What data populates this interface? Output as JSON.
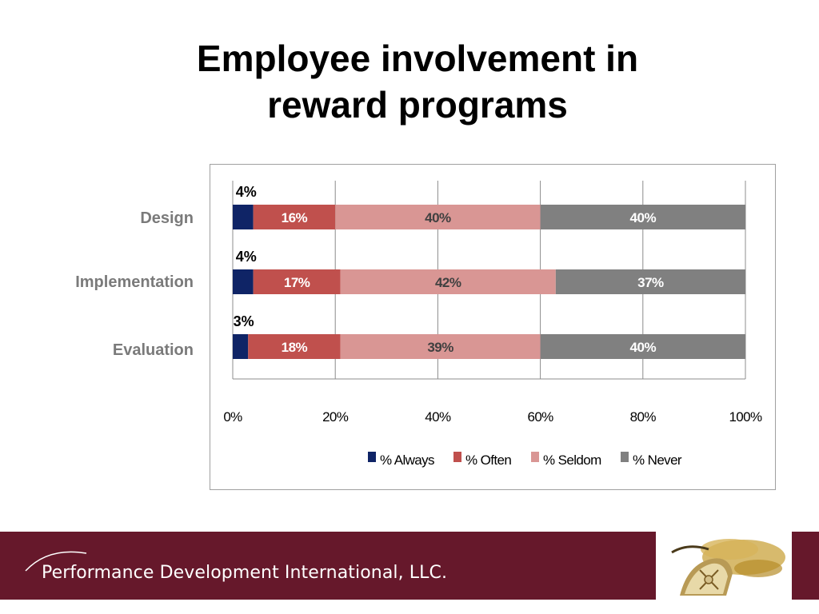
{
  "slide": {
    "title_line1": "Employee involvement in",
    "title_line2": "reward programs"
  },
  "footer": {
    "company": "Performance Development International, LLC.",
    "band_color": "#66182b"
  },
  "chart_data": {
    "type": "bar",
    "orientation": "horizontal",
    "stacked": "percent",
    "categories": [
      "Design",
      "Implementation",
      "Evaluation"
    ],
    "series": [
      {
        "name": "% Always",
        "values": [
          4,
          4,
          3
        ],
        "color": "#0f2466"
      },
      {
        "name": "% Often",
        "values": [
          16,
          17,
          18
        ],
        "color": "#c0504d"
      },
      {
        "name": "% Seldom",
        "values": [
          40,
          42,
          39
        ],
        "color": "#d99694"
      },
      {
        "name": "% Never",
        "values": [
          40,
          37,
          40
        ],
        "color": "#808080"
      }
    ],
    "data_labels": [
      [
        "4%",
        "16%",
        "40%",
        "40%"
      ],
      [
        "4%",
        "17%",
        "42%",
        "37%"
      ],
      [
        "3%",
        "18%",
        "39%",
        "40%"
      ]
    ],
    "x_ticks": [
      "0%",
      "20%",
      "40%",
      "60%",
      "80%",
      "100%"
    ],
    "xlim": [
      0,
      100
    ],
    "grid": true,
    "legend_position": "bottom"
  }
}
